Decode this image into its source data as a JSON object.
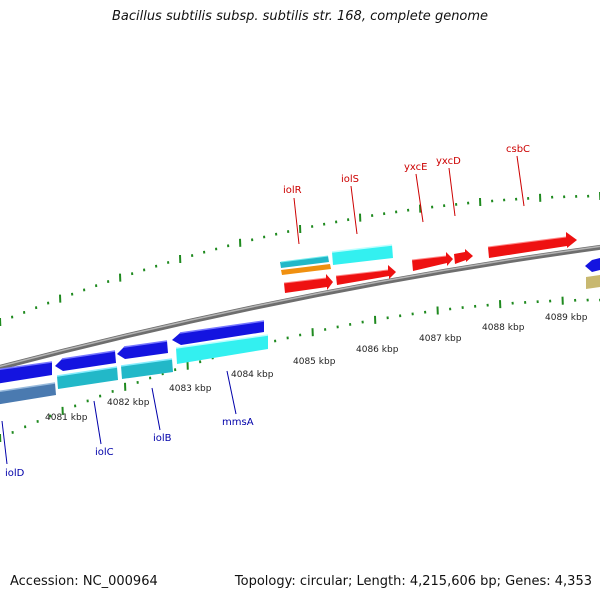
{
  "title": "Bacillus subtilis subsp. subtilis str. 168, complete genome",
  "footer": {
    "accession": "Accession: NC_000964",
    "topology": "Topology: circular; Length: 4,215,606 bp; Genes: 4,353"
  },
  "colors": {
    "backbone": "#8c8c8c",
    "tick": "#1f8a1f",
    "label_forward": "#cc0000",
    "label_reverse": "#0000aa",
    "red": "#ee1111",
    "blue": "#1414e0",
    "cyan": "#33f0f0",
    "teal": "#22b8c8",
    "orange": "#f09010",
    "steel": "#4a7ab0",
    "khaki": "#c8b870"
  },
  "scale": {
    "ticks": [
      {
        "kbp": 4081,
        "label": "4081 kbp"
      },
      {
        "kbp": 4082,
        "label": "4082 kbp"
      },
      {
        "kbp": 4083,
        "label": "4083 kbp"
      },
      {
        "kbp": 4084,
        "label": "4084 kbp"
      },
      {
        "kbp": 4085,
        "label": "4085 kbp"
      },
      {
        "kbp": 4086,
        "label": "4086 kbp"
      },
      {
        "kbp": 4087,
        "label": "4087 kbp"
      },
      {
        "kbp": 4088,
        "label": "4088 kbp"
      },
      {
        "kbp": 4089,
        "label": "4089 kbp"
      }
    ]
  },
  "features": [
    {
      "id": "iolR",
      "strand": "+",
      "label": "iolR"
    },
    {
      "id": "iolS",
      "strand": "+",
      "label": "iolS"
    },
    {
      "id": "yxcE",
      "strand": "+",
      "label": "yxcE"
    },
    {
      "id": "yxcD",
      "strand": "+",
      "label": "yxcD"
    },
    {
      "id": "csbC",
      "strand": "+",
      "label": "csbC"
    },
    {
      "id": "iolD",
      "strand": "-",
      "label": "iolD"
    },
    {
      "id": "iolC",
      "strand": "-",
      "label": "iolC"
    },
    {
      "id": "iolB",
      "strand": "-",
      "label": "iolB"
    },
    {
      "id": "mmsA",
      "strand": "-",
      "label": "mmsA"
    }
  ]
}
